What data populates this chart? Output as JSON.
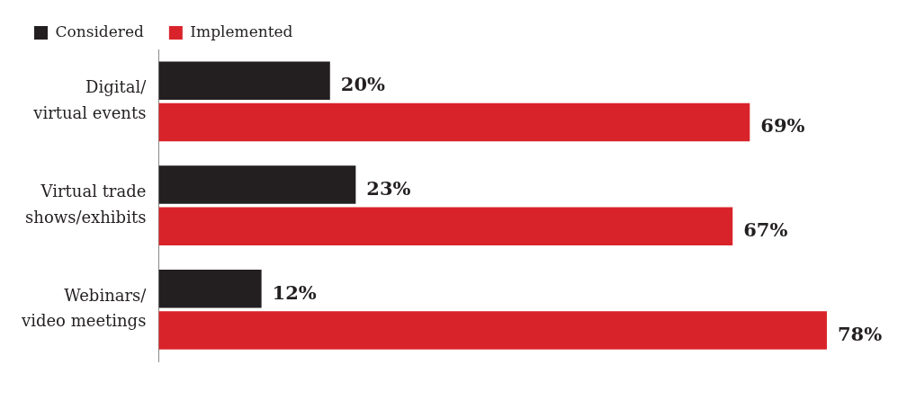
{
  "chart_data": {
    "type": "bar",
    "orientation": "horizontal",
    "categories": [
      "Digital/ virtual events",
      "Virtual trade shows/exhibits",
      "Webinars/ video meetings"
    ],
    "series": [
      {
        "name": "Considered",
        "color": "#231f20",
        "values": [
          20,
          23,
          12
        ],
        "value_labels": [
          "20%",
          "23%",
          "12%"
        ]
      },
      {
        "name": "Implemented",
        "color": "#d9232a",
        "values": [
          69,
          67,
          78
        ],
        "value_labels": [
          "69%",
          "67%",
          "78%"
        ]
      }
    ],
    "legend": "top left",
    "grid": false
  }
}
